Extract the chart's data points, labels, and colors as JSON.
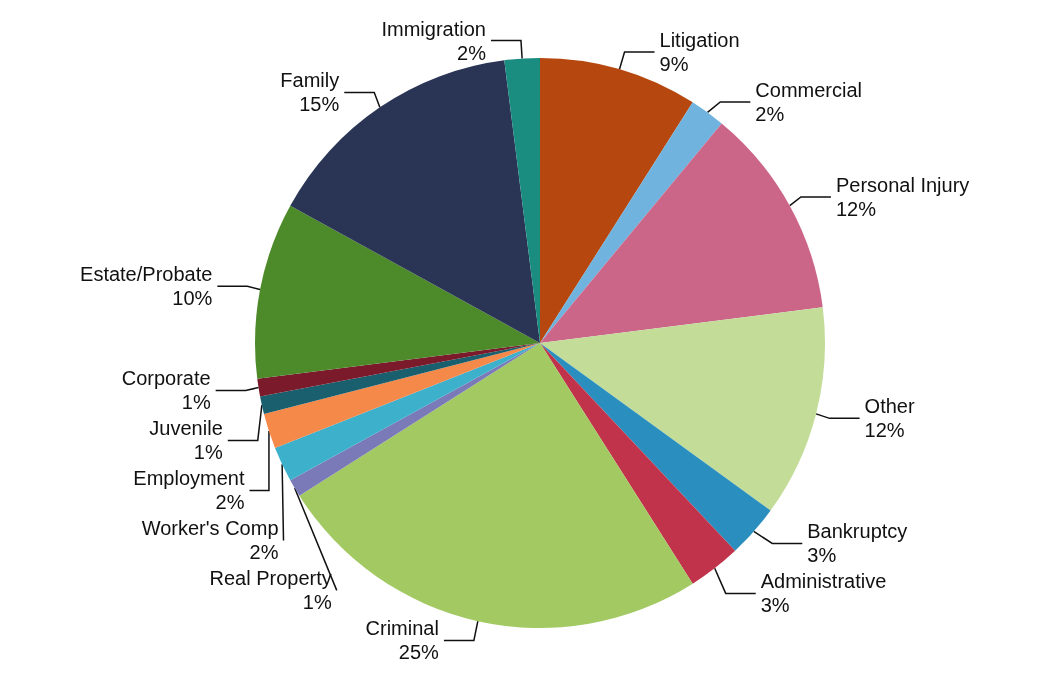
{
  "chart_data": {
    "type": "pie",
    "categories": [
      "Litigation",
      "Commercial",
      "Personal Injury",
      "Other",
      "Bankruptcy",
      "Administrative",
      "Criminal",
      "Real Property",
      "Worker's Comp",
      "Employment",
      "Juvenile",
      "Corporate",
      "Estate/Probate",
      "Family",
      "Immigration"
    ],
    "values": [
      9,
      2,
      12,
      12,
      3,
      3,
      25,
      1,
      2,
      2,
      1,
      1,
      10,
      15,
      2
    ],
    "value_labels": [
      "9%",
      "2%",
      "12%",
      "12%",
      "3%",
      "3%",
      "25%",
      "1%",
      "2%",
      "2%",
      "1%",
      "1%",
      "10%",
      "15%",
      "2%"
    ],
    "colors": [
      "#b5470f",
      "#6fb3de",
      "#cc6688",
      "#c3dd99",
      "#2a8fbf",
      "#c0334a",
      "#a3c963",
      "#7a7ab8",
      "#3db0cc",
      "#f5894a",
      "#1a5f6e",
      "#7a1a2a",
      "#4d8a2a",
      "#2a3556",
      "#1a8c80"
    ],
    "legend": false
  }
}
